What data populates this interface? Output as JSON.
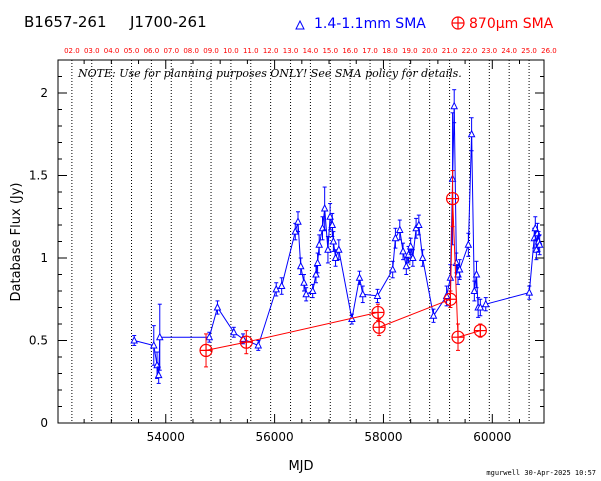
{
  "header": {
    "source_name": "B1657-261",
    "alt_name": "J1700-261",
    "legend_band1": "1.4-1.1mm SMA",
    "legend_band2": "870μm SMA"
  },
  "footer": {
    "credit": "mgurwell 30-Apr-2025 10:57"
  },
  "colors": {
    "band1": "#0000ff",
    "band2": "#ff0000",
    "axis": "#000000",
    "year_tick_label": "#ff0000"
  },
  "chart_data": {
    "type": "scatter",
    "title": "",
    "xlabel": "MJD",
    "ylabel": "Database Flux (Jy)",
    "note": "NOTE: Use for planning purposes ONLY!  See SMA policy for details.",
    "xlim": [
      52020,
      60950
    ],
    "ylim": [
      0,
      2.2
    ],
    "x_ticks": [
      54000,
      56000,
      58000,
      60000
    ],
    "y_ticks": [
      0,
      0.5,
      1,
      1.5,
      2
    ],
    "year_ticks": [
      {
        "label": "02.0",
        "mjd": 52275
      },
      {
        "label": "03.0",
        "mjd": 52640
      },
      {
        "label": "04.0",
        "mjd": 53005
      },
      {
        "label": "05.0",
        "mjd": 53371
      },
      {
        "label": "06.0",
        "mjd": 53736
      },
      {
        "label": "07.0",
        "mjd": 54101
      },
      {
        "label": "08.0",
        "mjd": 54466
      },
      {
        "label": "09.0",
        "mjd": 54832
      },
      {
        "label": "10.0",
        "mjd": 55197
      },
      {
        "label": "11.0",
        "mjd": 55562
      },
      {
        "label": "12.0",
        "mjd": 55927
      },
      {
        "label": "13.0",
        "mjd": 56293
      },
      {
        "label": "14.0",
        "mjd": 56658
      },
      {
        "label": "15.0",
        "mjd": 57023
      },
      {
        "label": "16.0",
        "mjd": 57388
      },
      {
        "label": "17.0",
        "mjd": 57754
      },
      {
        "label": "18.0",
        "mjd": 58119
      },
      {
        "label": "19.0",
        "mjd": 58484
      },
      {
        "label": "20.0",
        "mjd": 58849
      },
      {
        "label": "21.0",
        "mjd": 59215
      },
      {
        "label": "22.0",
        "mjd": 59580
      },
      {
        "label": "23.0",
        "mjd": 59945
      },
      {
        "label": "24.0",
        "mjd": 60310
      },
      {
        "label": "25.0",
        "mjd": 60676
      },
      {
        "label": "26.0",
        "mjd": 61041
      }
    ],
    "grid": "vertical dotted lines at year boundaries",
    "legend": "top",
    "series": [
      {
        "name": "1.4-1.1mm SMA",
        "marker": "triangle",
        "points": [
          [
            53420,
            0.5,
            0.03
          ],
          [
            53780,
            0.47,
            0.12
          ],
          [
            53840,
            0.35,
            0.08
          ],
          [
            53870,
            0.29,
            0.05
          ],
          [
            53890,
            0.52,
            0.2
          ],
          [
            54800,
            0.52,
            0.03
          ],
          [
            54950,
            0.7,
            0.04
          ],
          [
            55250,
            0.55,
            0.03
          ],
          [
            55420,
            0.51,
            0.03
          ],
          [
            55700,
            0.47,
            0.03
          ],
          [
            56030,
            0.81,
            0.04
          ],
          [
            56130,
            0.83,
            0.05
          ],
          [
            56380,
            1.16,
            0.05
          ],
          [
            56430,
            1.22,
            0.06
          ],
          [
            56480,
            0.95,
            0.05
          ],
          [
            56540,
            0.85,
            0.05
          ],
          [
            56580,
            0.78,
            0.04
          ],
          [
            56700,
            0.8,
            0.04
          ],
          [
            56760,
            0.9,
            0.05
          ],
          [
            56790,
            0.97,
            0.06
          ],
          [
            56820,
            1.08,
            0.06
          ],
          [
            56880,
            1.18,
            0.07
          ],
          [
            56920,
            1.3,
            0.13
          ],
          [
            56980,
            1.05,
            0.08
          ],
          [
            57020,
            1.25,
            0.08
          ],
          [
            57060,
            1.2,
            0.07
          ],
          [
            57080,
            1.1,
            0.06
          ],
          [
            57120,
            1.0,
            0.05
          ],
          [
            57180,
            1.05,
            0.06
          ],
          [
            57420,
            0.63,
            0.03
          ],
          [
            57560,
            0.88,
            0.04
          ],
          [
            57620,
            0.78,
            0.05
          ],
          [
            57890,
            0.77,
            0.04
          ],
          [
            58170,
            0.93,
            0.05
          ],
          [
            58220,
            1.12,
            0.06
          ],
          [
            58300,
            1.17,
            0.06
          ],
          [
            58360,
            1.04,
            0.05
          ],
          [
            58420,
            0.95,
            0.05
          ],
          [
            58460,
            1.02,
            0.05
          ],
          [
            58500,
            1.07,
            0.05
          ],
          [
            58540,
            1.0,
            0.05
          ],
          [
            58600,
            1.18,
            0.06
          ],
          [
            58650,
            1.2,
            0.06
          ],
          [
            58720,
            1.0,
            0.05
          ],
          [
            58920,
            0.65,
            0.04
          ],
          [
            59160,
            0.77,
            0.06
          ],
          [
            59230,
            0.88,
            0.08
          ],
          [
            59270,
            1.48,
            0.4
          ],
          [
            59300,
            1.92,
            0.1
          ],
          [
            59340,
            0.97,
            0.06
          ],
          [
            59370,
            0.9,
            0.06
          ],
          [
            59400,
            0.93,
            0.06
          ],
          [
            59560,
            1.08,
            0.07
          ],
          [
            59620,
            1.75,
            0.1
          ],
          [
            59670,
            0.8,
            0.06
          ],
          [
            59710,
            0.9,
            0.08
          ],
          [
            59740,
            0.7,
            0.06
          ],
          [
            59780,
            0.7,
            0.05
          ],
          [
            59880,
            0.72,
            0.04
          ],
          [
            60680,
            0.79,
            0.04
          ],
          [
            60770,
            1.12,
            0.06
          ],
          [
            60790,
            1.18,
            0.07
          ],
          [
            60810,
            1.05,
            0.06
          ],
          [
            60830,
            1.15,
            0.06
          ],
          [
            60850,
            1.1,
            0.06
          ],
          [
            60870,
            1.08,
            0.06
          ]
        ]
      },
      {
        "name": "870μm SMA",
        "marker": "circle-plus",
        "points": [
          [
            54740,
            0.44,
            0.1
          ],
          [
            55480,
            0.49,
            0.07
          ],
          [
            57900,
            0.67,
            0.05
          ],
          [
            57920,
            0.58,
            0.05
          ],
          [
            59230,
            0.75,
            0.05
          ],
          [
            59270,
            1.36,
            0.17
          ],
          [
            59370,
            0.52,
            0.08
          ],
          [
            59780,
            0.56,
            0.04
          ]
        ]
      }
    ]
  }
}
